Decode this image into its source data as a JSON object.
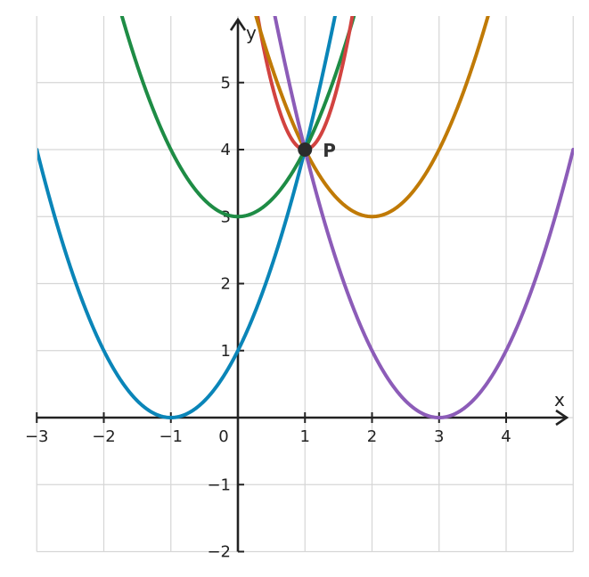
{
  "chart_data": {
    "type": "line",
    "title": "",
    "xlabel": "x",
    "ylabel": "y",
    "xlim": [
      -3,
      5
    ],
    "ylim": [
      -2,
      6
    ],
    "grid": true,
    "x_ticks": [
      -3,
      -2,
      -1,
      0,
      1,
      2,
      3,
      4
    ],
    "y_ticks": [
      -2,
      -1,
      1,
      2,
      3,
      4,
      5
    ],
    "x_tick_labels": [
      "−3",
      "−2",
      "−1",
      "0",
      "1",
      "2",
      "3",
      "4"
    ],
    "y_tick_labels": [
      "−2",
      "−1",
      "1",
      "2",
      "3",
      "4",
      "5"
    ],
    "series": [
      {
        "color": "#0a85b8",
        "formula": "(x+1)^2",
        "vertex": [
          -1,
          0
        ],
        "a": 1
      },
      {
        "color": "#1e8c45",
        "formula": "x^2+3",
        "vertex": [
          0,
          3
        ],
        "a": 1
      },
      {
        "color": "#d24340",
        "formula": "4x^2-8x+8",
        "vertex": [
          1,
          4
        ],
        "a": 4
      },
      {
        "color": "#c07a06",
        "formula": "(x-2)^2+3",
        "vertex": [
          2,
          3
        ],
        "a": 1
      },
      {
        "color": "#8c5cb8",
        "formula": "(x-3)^2",
        "vertex": [
          3,
          0
        ],
        "a": 1
      }
    ],
    "points": [
      {
        "label": "P",
        "x": 1,
        "y": 4,
        "color": "#2b2b2b"
      }
    ]
  }
}
